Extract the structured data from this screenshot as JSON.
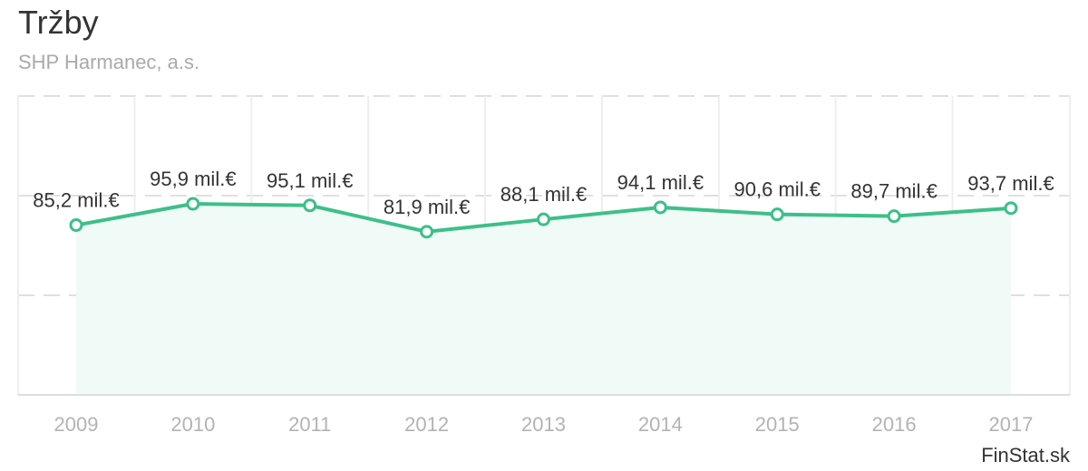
{
  "header": {
    "title": "Tržby",
    "subtitle": "SHP Harmanec, a.s."
  },
  "credit": "FinStat.sk",
  "colors": {
    "line": "#3dbf8a",
    "area": "#f0faf6",
    "grid": "#e0e0e0",
    "tick_text": "#b3b3b3",
    "label_text": "#333333"
  },
  "chart_data": {
    "type": "area",
    "categories": [
      "2009",
      "2010",
      "2011",
      "2012",
      "2013",
      "2014",
      "2015",
      "2016",
      "2017"
    ],
    "values": [
      85.2,
      95.9,
      95.1,
      81.9,
      88.1,
      94.1,
      90.6,
      89.7,
      93.7
    ],
    "data_labels": [
      "85,2 mil.€",
      "95,9 mil.€",
      "95,1 mil.€",
      "81,9 mil.€",
      "88,1 mil.€",
      "94,1 mil.€",
      "90,6 mil.€",
      "89,7 mil.€",
      "93,7 mil.€"
    ],
    "unit": "mil.€",
    "ylim": [
      0,
      150
    ],
    "grid": true,
    "legend": "none"
  }
}
